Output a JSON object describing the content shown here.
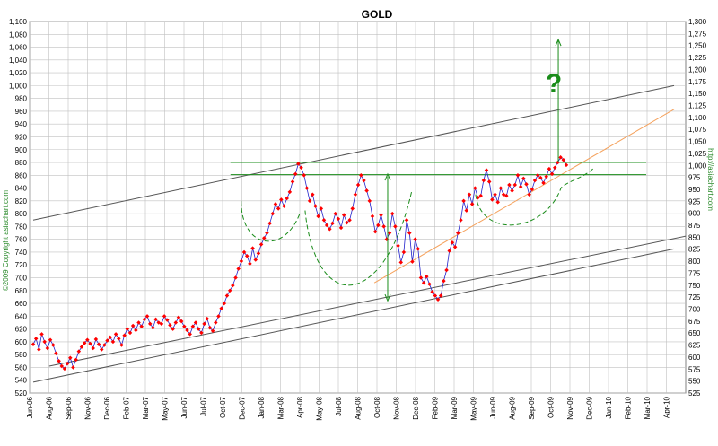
{
  "chart_data": {
    "type": "line",
    "title": "GOLD",
    "copyright": "©2009 Copyright asiachart.com",
    "url": "http://asiachart.com",
    "annotation": "?",
    "colors": {
      "series": "#2222cc",
      "markers": "#ff0000",
      "grid": "#c0c0c0",
      "trend": "#555555",
      "annotation": "#1a8c1a",
      "orange": "#f5a25d"
    },
    "left_axis": {
      "ylim": [
        520,
        1100
      ],
      "ticks": [
        "520",
        "540",
        "560",
        "580",
        "600",
        "620",
        "640",
        "660",
        "680",
        "700",
        "720",
        "740",
        "760",
        "780",
        "800",
        "820",
        "840",
        "860",
        "880",
        "900",
        "920",
        "940",
        "960",
        "980",
        "1,000",
        "1,020",
        "1,040",
        "1,060",
        "1,080",
        "1,100"
      ]
    },
    "right_axis": {
      "ylim": [
        525,
        1300
      ],
      "ticks": [
        "525",
        "550",
        "575",
        "600",
        "625",
        "650",
        "675",
        "700",
        "725",
        "750",
        "775",
        "800",
        "825",
        "850",
        "875",
        "900",
        "925",
        "950",
        "975",
        "1,000",
        "1,025",
        "1,050",
        "1,075",
        "1,100",
        "1,125",
        "1,150",
        "1,175",
        "1,200",
        "1,225",
        "1,250",
        "1,275",
        "1,300"
      ]
    },
    "x_axis": {
      "categories": [
        "Jun-06",
        "Aug-06",
        "Sep-06",
        "Nov-06",
        "Dec-06",
        "Feb-07",
        "Mar-07",
        "May-07",
        "Jun-07",
        "Jul-07",
        "Oct-07",
        "Dec-07",
        "Jan-08",
        "Mar-08",
        "Apr-08",
        "May-08",
        "Jul-08",
        "Aug-08",
        "Oct-08",
        "Nov-08",
        "Dec-08",
        "Feb-09",
        "Mar-09",
        "May-09",
        "Jun-09",
        "Aug-09",
        "Sep-09",
        "Oct-09",
        "Nov-09",
        "Dec-09",
        "Jan-10",
        "Feb-10",
        "Mar-10",
        "Apr-10"
      ]
    },
    "series": [
      {
        "values": [
          596,
          605,
          588,
          612,
          600,
          590,
          603,
          595,
          582,
          570,
          562,
          558,
          566,
          575,
          560,
          572,
          585,
          592,
          598,
          603,
          597,
          590,
          604,
          596,
          588,
          595,
          602,
          607,
          600,
          612,
          605,
          595,
          610,
          620,
          614,
          625,
          618,
          630,
          624,
          635,
          640,
          628,
          622,
          635,
          630,
          628,
          640,
          634,
          626,
          620,
          630,
          638,
          632,
          624,
          618,
          612,
          624,
          630,
          620,
          614,
          628,
          636,
          622,
          617,
          630,
          640,
          652,
          660,
          672,
          680,
          688,
          700,
          714,
          726,
          740,
          734,
          722,
          746,
          728,
          738,
          752,
          762,
          770,
          785,
          800,
          815,
          808,
          822,
          812,
          824,
          834,
          850,
          862,
          878,
          872,
          860,
          840,
          820,
          830,
          812,
          796,
          808,
          790,
          782,
          776,
          785,
          800,
          792,
          778,
          798,
          786,
          790,
          808,
          830,
          845,
          860,
          852,
          836,
          820,
          796,
          772,
          782,
          798,
          780,
          760,
          770,
          800,
          780,
          750,
          724,
          740,
          790,
          770,
          725,
          760,
          745,
          700,
          692,
          702,
          690,
          678,
          672,
          666,
          672,
          695,
          712,
          742,
          755,
          748,
          770,
          790,
          820,
          805,
          830,
          815,
          840,
          825,
          828,
          852,
          868,
          850,
          822,
          830,
          818,
          840,
          830,
          828,
          845,
          836,
          845,
          860,
          842,
          855,
          846,
          830,
          838,
          852,
          860,
          856,
          848,
          858,
          870,
          862,
          872,
          880,
          888,
          884,
          876
        ]
      }
    ]
  }
}
